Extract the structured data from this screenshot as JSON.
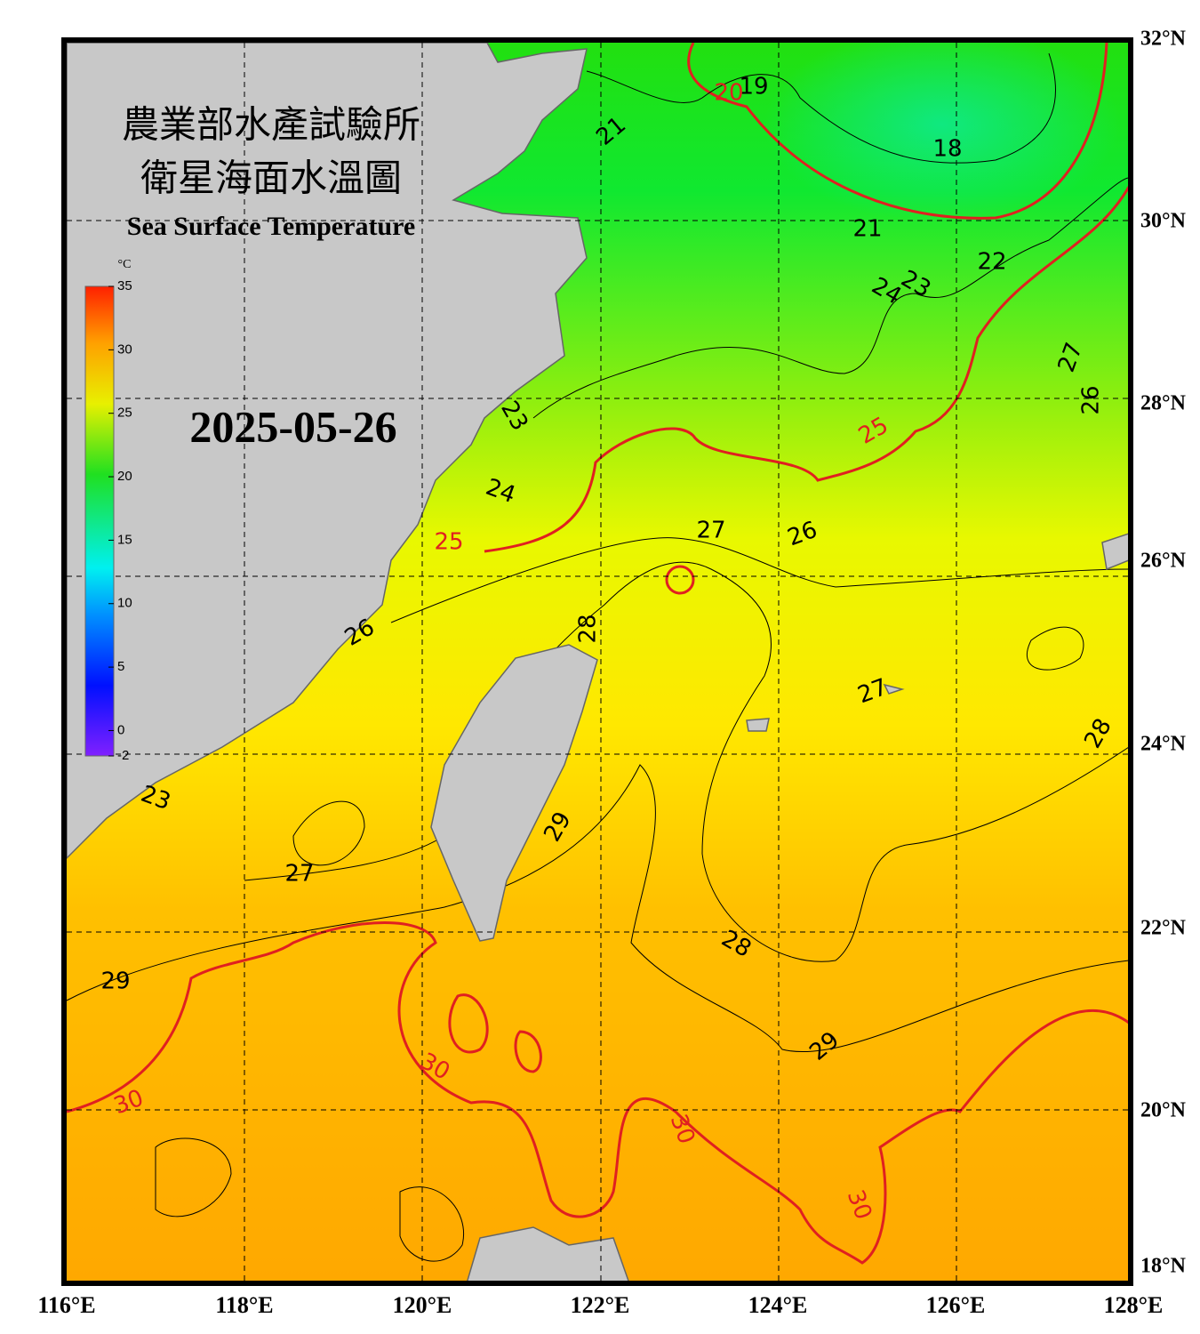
{
  "header": {
    "title_zh_1": "農業部水產試驗所",
    "title_zh_2": "衛星海面水溫圖",
    "title_en": "Sea Surface Temperature",
    "date": "2025-05-26"
  },
  "axes": {
    "lon_labels": [
      "116°E",
      "118°E",
      "120°E",
      "122°E",
      "124°E",
      "126°E",
      "128°E"
    ],
    "lat_labels": [
      "32°N",
      "30°N",
      "28°N",
      "26°N",
      "24°N",
      "22°N",
      "20°N",
      "18°N"
    ]
  },
  "colorbar": {
    "unit": "°C",
    "range": [
      -2,
      35
    ],
    "ticks": [
      35,
      30,
      25,
      20,
      15,
      10,
      5,
      0,
      -2
    ]
  },
  "contour_labels": [
    19,
    20,
    21,
    18,
    21,
    22,
    23,
    24,
    27,
    26,
    25,
    23,
    24,
    25,
    27,
    26,
    28,
    26,
    27,
    28,
    23,
    29,
    27,
    28,
    29,
    29,
    30,
    30,
    30,
    30
  ]
}
